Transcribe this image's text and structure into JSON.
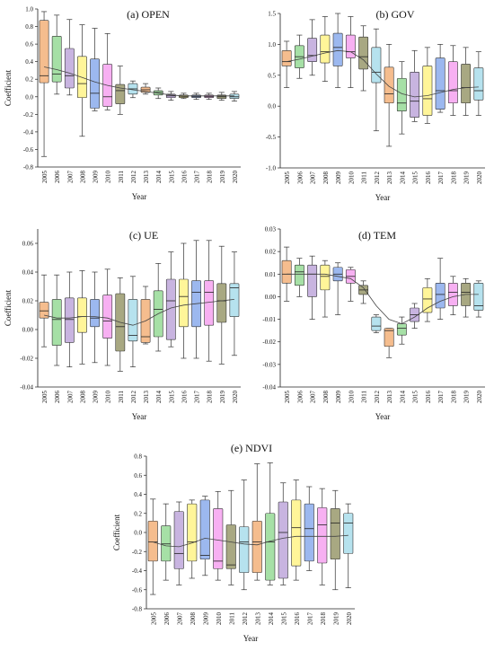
{
  "box_colors": [
    "#f5bd8e",
    "#a6e0a6",
    "#c8b4e0",
    "#fff599",
    "#9cb8ef",
    "#f7b0f2",
    "#a8a882",
    "#b6e2ee"
  ],
  "chart_data": [
    {
      "type": "box",
      "title": "(a) OPEN",
      "xlabel": "Year",
      "ylabel": "Coefficient",
      "ylim": [
        -0.8,
        1.0
      ],
      "yticks": [
        "-0.8",
        "-0.6",
        "-0.4",
        "-0.2",
        "0.0",
        "0.2",
        "0.4",
        "0.6",
        "0.8",
        "1.0"
      ],
      "ytick_values": [
        -0.8,
        -0.6,
        -0.4,
        -0.2,
        0.0,
        0.2,
        0.4,
        0.6,
        0.8,
        1.0
      ],
      "categories": [
        "2005",
        "2006",
        "2007",
        "2008",
        "2009",
        "2010",
        "2011",
        "2012",
        "2013",
        "2014",
        "2015",
        "2016",
        "2017",
        "2018",
        "2019",
        "2020"
      ],
      "boxes": [
        {
          "min": -0.68,
          "q1": 0.16,
          "median": 0.24,
          "q3": 0.87,
          "max": 0.97
        },
        {
          "min": 0.03,
          "q1": 0.17,
          "median": 0.26,
          "q3": 0.69,
          "max": 0.93
        },
        {
          "min": 0.02,
          "q1": 0.1,
          "median": 0.24,
          "q3": 0.55,
          "max": 0.88
        },
        {
          "min": -0.45,
          "q1": -0.01,
          "median": 0.15,
          "q3": 0.46,
          "max": 0.82
        },
        {
          "min": -0.16,
          "q1": -0.13,
          "median": 0.04,
          "q3": 0.43,
          "max": 0.78
        },
        {
          "min": -0.15,
          "q1": -0.11,
          "median": 0.0,
          "q3": 0.37,
          "max": 0.72
        },
        {
          "min": -0.2,
          "q1": -0.08,
          "median": 0.07,
          "q3": 0.14,
          "max": 0.35
        },
        {
          "min": -0.01,
          "q1": 0.03,
          "median": 0.09,
          "q3": 0.15,
          "max": 0.18
        },
        {
          "min": 0.03,
          "q1": 0.05,
          "median": 0.08,
          "q3": 0.11,
          "max": 0.15
        },
        {
          "min": -0.02,
          "q1": 0.02,
          "median": 0.05,
          "q3": 0.07,
          "max": 0.1
        },
        {
          "min": -0.04,
          "q1": -0.01,
          "median": 0.01,
          "q3": 0.03,
          "max": 0.06
        },
        {
          "min": -0.02,
          "q1": -0.01,
          "median": 0.0,
          "q3": 0.02,
          "max": 0.04
        },
        {
          "min": -0.03,
          "q1": -0.01,
          "median": 0.0,
          "q3": 0.02,
          "max": 0.04
        },
        {
          "min": -0.03,
          "q1": -0.01,
          "median": 0.0,
          "q3": 0.02,
          "max": 0.04
        },
        {
          "min": -0.04,
          "q1": -0.02,
          "median": 0.0,
          "q3": 0.02,
          "max": 0.05
        },
        {
          "min": -0.05,
          "q1": -0.02,
          "median": 0.0,
          "q3": 0.03,
          "max": 0.06
        }
      ],
      "trend": [
        0.34,
        0.31,
        0.27,
        0.22,
        0.17,
        0.13,
        0.1,
        0.08,
        0.06,
        0.04,
        0.02,
        0.01,
        0.01,
        0.01,
        0.01,
        0.01
      ]
    },
    {
      "type": "box",
      "title": "(b) GOV",
      "xlabel": "Year",
      "ylabel": "",
      "ylim": [
        -1.0,
        1.5
      ],
      "yticks": [
        "-1.0",
        "-0.5",
        "0.0",
        "0.5",
        "1.0",
        "1.5"
      ],
      "ytick_values": [
        -1.0,
        -0.5,
        0.0,
        0.5,
        1.0,
        1.5
      ],
      "categories": [
        "2005",
        "2006",
        "2007",
        "2008",
        "2009",
        "2010",
        "2011",
        "2012",
        "2013",
        "2014",
        "2015",
        "2016",
        "2017",
        "2018",
        "2019",
        "2020"
      ],
      "boxes": [
        {
          "min": 0.3,
          "q1": 0.65,
          "median": 0.72,
          "q3": 0.9,
          "max": 1.05
        },
        {
          "min": 0.45,
          "q1": 0.62,
          "median": 0.8,
          "q3": 0.98,
          "max": 1.15
        },
        {
          "min": 0.5,
          "q1": 0.72,
          "median": 0.82,
          "q3": 1.1,
          "max": 1.4
        },
        {
          "min": 0.4,
          "q1": 0.7,
          "median": 0.88,
          "q3": 1.15,
          "max": 1.45
        },
        {
          "min": 0.3,
          "q1": 0.65,
          "median": 0.95,
          "q3": 1.18,
          "max": 1.5
        },
        {
          "min": 0.3,
          "q1": 0.78,
          "median": 0.88,
          "q3": 1.15,
          "max": 1.45
        },
        {
          "min": 0.25,
          "q1": 0.6,
          "median": 0.8,
          "q3": 1.12,
          "max": 1.3
        },
        {
          "min": -0.4,
          "q1": 0.38,
          "median": 0.55,
          "q3": 0.95,
          "max": 1.25
        },
        {
          "min": -0.65,
          "q1": 0.05,
          "median": 0.2,
          "q3": 0.63,
          "max": 1.0
        },
        {
          "min": -0.45,
          "q1": -0.08,
          "median": 0.05,
          "q3": 0.45,
          "max": 0.72
        },
        {
          "min": -0.25,
          "q1": -0.18,
          "median": 0.08,
          "q3": 0.55,
          "max": 0.9
        },
        {
          "min": -0.28,
          "q1": -0.15,
          "median": 0.12,
          "q3": 0.65,
          "max": 0.95
        },
        {
          "min": -0.1,
          "q1": -0.05,
          "median": 0.25,
          "q3": 0.78,
          "max": 1.0
        },
        {
          "min": -0.15,
          "q1": 0.05,
          "median": 0.25,
          "q3": 0.72,
          "max": 0.98
        },
        {
          "min": -0.15,
          "q1": 0.05,
          "median": 0.3,
          "q3": 0.68,
          "max": 0.95
        },
        {
          "min": -0.15,
          "q1": 0.1,
          "median": 0.25,
          "q3": 0.62,
          "max": 0.88
        }
      ],
      "trend": [
        0.72,
        0.76,
        0.81,
        0.86,
        0.9,
        0.88,
        0.75,
        0.52,
        0.32,
        0.2,
        0.15,
        0.17,
        0.22,
        0.27,
        0.3,
        0.31
      ]
    },
    {
      "type": "box",
      "title": "(c) UE",
      "xlabel": "Year",
      "ylabel": "Coefficient",
      "ylim": [
        -0.04,
        0.07
      ],
      "yticks": [
        "-0.04",
        "-0.02",
        "0.00",
        "0.02",
        "0.04",
        "0.06"
      ],
      "ytick_values": [
        -0.04,
        -0.02,
        0.0,
        0.02,
        0.04,
        0.06
      ],
      "categories": [
        "2005",
        "2006",
        "2007",
        "2008",
        "2009",
        "2010",
        "2011",
        "2012",
        "2013",
        "2014",
        "2015",
        "2016",
        "2017",
        "2018",
        "2019",
        "2020"
      ],
      "boxes": [
        {
          "min": -0.012,
          "q1": 0.008,
          "median": 0.013,
          "q3": 0.019,
          "max": 0.038
        },
        {
          "min": -0.025,
          "q1": -0.011,
          "median": 0.007,
          "q3": 0.021,
          "max": 0.038
        },
        {
          "min": -0.026,
          "q1": -0.009,
          "median": 0.007,
          "q3": 0.022,
          "max": 0.04
        },
        {
          "min": -0.024,
          "q1": -0.002,
          "median": 0.009,
          "q3": 0.022,
          "max": 0.041
        },
        {
          "min": -0.023,
          "q1": 0.002,
          "median": 0.008,
          "q3": 0.021,
          "max": 0.04
        },
        {
          "min": -0.025,
          "q1": -0.006,
          "median": 0.006,
          "q3": 0.024,
          "max": 0.042
        },
        {
          "min": -0.029,
          "q1": -0.015,
          "median": 0.002,
          "q3": 0.025,
          "max": 0.036
        },
        {
          "min": -0.026,
          "q1": -0.008,
          "median": -0.004,
          "q3": 0.021,
          "max": 0.037
        },
        {
          "min": -0.01,
          "q1": -0.009,
          "median": -0.005,
          "q3": 0.021,
          "max": 0.03
        },
        {
          "min": -0.015,
          "q1": -0.005,
          "median": 0.014,
          "q3": 0.027,
          "max": 0.046
        },
        {
          "min": -0.012,
          "q1": -0.007,
          "median": 0.02,
          "q3": 0.035,
          "max": 0.054
        },
        {
          "min": -0.02,
          "q1": 0.002,
          "median": 0.023,
          "q3": 0.035,
          "max": 0.06
        },
        {
          "min": -0.02,
          "q1": 0.002,
          "median": 0.026,
          "q3": 0.034,
          "max": 0.062
        },
        {
          "min": -0.022,
          "q1": 0.003,
          "median": 0.026,
          "q3": 0.034,
          "max": 0.062
        },
        {
          "min": -0.024,
          "q1": 0.005,
          "median": 0.02,
          "q3": 0.032,
          "max": 0.058
        },
        {
          "min": -0.018,
          "q1": 0.009,
          "median": 0.029,
          "q3": 0.032,
          "max": 0.054
        }
      ],
      "trend": [
        0.01,
        0.008,
        0.008,
        0.009,
        0.009,
        0.008,
        0.005,
        0.003,
        0.006,
        0.011,
        0.015,
        0.017,
        0.018,
        0.019,
        0.02,
        0.021
      ]
    },
    {
      "type": "box",
      "title": "(d) TEM",
      "xlabel": "Year",
      "ylabel": "",
      "ylim": [
        -0.04,
        0.03
      ],
      "yticks": [
        "-0.04",
        "-0.03",
        "-0.02",
        "-0.01",
        "0.00",
        "0.01",
        "0.02",
        "0.03"
      ],
      "ytick_values": [
        -0.04,
        -0.03,
        -0.02,
        -0.01,
        0.0,
        0.01,
        0.02,
        0.03
      ],
      "categories": [
        "2005",
        "2006",
        "2007",
        "2008",
        "2009",
        "2010",
        "2011",
        "2012",
        "2013",
        "2014",
        "2015",
        "2016",
        "2017",
        "2018",
        "2019",
        "2020"
      ],
      "boxes": [
        {
          "min": -0.002,
          "q1": 0.006,
          "median": 0.01,
          "q3": 0.016,
          "max": 0.022
        },
        {
          "min": 0.0,
          "q1": 0.005,
          "median": 0.011,
          "q3": 0.014,
          "max": 0.017
        },
        {
          "min": -0.01,
          "q1": 0.0,
          "median": 0.01,
          "q3": 0.014,
          "max": 0.018
        },
        {
          "min": -0.009,
          "q1": 0.003,
          "median": 0.009,
          "q3": 0.014,
          "max": 0.016
        },
        {
          "min": -0.008,
          "q1": 0.007,
          "median": 0.01,
          "q3": 0.013,
          "max": 0.015
        },
        {
          "min": -0.002,
          "q1": 0.006,
          "median": 0.009,
          "q3": 0.012,
          "max": 0.013
        },
        {
          "min": -0.003,
          "q1": 0.001,
          "median": 0.003,
          "q3": 0.005,
          "max": 0.007
        },
        {
          "min": -0.016,
          "q1": -0.015,
          "median": -0.013,
          "q3": -0.009,
          "max": -0.008
        },
        {
          "min": -0.027,
          "q1": -0.022,
          "median": -0.015,
          "q3": -0.014,
          "max": -0.014
        },
        {
          "min": -0.021,
          "q1": -0.017,
          "median": -0.014,
          "q3": -0.012,
          "max": -0.009
        },
        {
          "min": -0.014,
          "q1": -0.011,
          "median": -0.008,
          "q3": -0.005,
          "max": -0.003
        },
        {
          "min": -0.011,
          "q1": -0.007,
          "median": -0.001,
          "q3": 0.004,
          "max": 0.008
        },
        {
          "min": -0.01,
          "q1": -0.005,
          "median": 0.001,
          "q3": 0.006,
          "max": 0.017
        },
        {
          "min": -0.008,
          "q1": -0.004,
          "median": 0.002,
          "q3": 0.006,
          "max": 0.009
        },
        {
          "min": -0.009,
          "q1": -0.004,
          "median": 0.002,
          "q3": 0.006,
          "max": 0.008
        },
        {
          "min": -0.009,
          "q1": -0.006,
          "median": -0.004,
          "q3": 0.006,
          "max": 0.007
        }
      ],
      "trend": [
        0.01,
        0.01,
        0.01,
        0.01,
        0.009,
        0.008,
        0.004,
        -0.004,
        -0.01,
        -0.012,
        -0.009,
        -0.005,
        -0.002,
        0.0,
        0.001,
        0.001
      ]
    },
    {
      "type": "box",
      "title": "(e) NDVI",
      "xlabel": "Year",
      "ylabel": "Coefficient",
      "ylim": [
        -0.8,
        0.8
      ],
      "yticks": [
        "-0.8",
        "-0.6",
        "-0.4",
        "-0.2",
        "0.0",
        "0.2",
        "0.4",
        "0.6",
        "0.8"
      ],
      "ytick_values": [
        -0.8,
        -0.6,
        -0.4,
        -0.2,
        0.0,
        0.2,
        0.4,
        0.6,
        0.8
      ],
      "categories": [
        "2005",
        "2006",
        "2007",
        "2008",
        "2009",
        "2010",
        "2011",
        "2012",
        "2013",
        "2014",
        "2015",
        "2016",
        "2017",
        "2018",
        "2019",
        "2020"
      ],
      "boxes": [
        {
          "min": -0.65,
          "q1": -0.3,
          "median": -0.1,
          "q3": 0.12,
          "max": 0.35
        },
        {
          "min": -0.5,
          "q1": -0.3,
          "median": -0.12,
          "q3": 0.07,
          "max": 0.3
        },
        {
          "min": -0.55,
          "q1": -0.38,
          "median": -0.22,
          "q3": 0.22,
          "max": 0.32
        },
        {
          "min": -0.48,
          "q1": -0.3,
          "median": -0.1,
          "q3": 0.3,
          "max": 0.34
        },
        {
          "min": -0.45,
          "q1": -0.28,
          "median": -0.24,
          "q3": 0.34,
          "max": 0.38
        },
        {
          "min": -0.5,
          "q1": -0.38,
          "median": -0.3,
          "q3": 0.25,
          "max": 0.43
        },
        {
          "min": -0.55,
          "q1": -0.38,
          "median": -0.34,
          "q3": 0.08,
          "max": 0.44
        },
        {
          "min": -0.6,
          "q1": -0.42,
          "median": -0.1,
          "q3": 0.06,
          "max": 0.55
        },
        {
          "min": -0.5,
          "q1": -0.42,
          "median": -0.1,
          "q3": 0.12,
          "max": 0.72
        },
        {
          "min": -0.55,
          "q1": -0.5,
          "median": -0.1,
          "q3": 0.2,
          "max": 0.73
        },
        {
          "min": -0.55,
          "q1": -0.48,
          "median": 0.0,
          "q3": 0.32,
          "max": 0.52
        },
        {
          "min": -0.5,
          "q1": -0.35,
          "median": 0.05,
          "q3": 0.34,
          "max": 0.55
        },
        {
          "min": -0.4,
          "q1": -0.3,
          "median": 0.04,
          "q3": 0.3,
          "max": 0.48
        },
        {
          "min": -0.55,
          "q1": -0.32,
          "median": 0.08,
          "q3": 0.26,
          "max": 0.46
        },
        {
          "min": -0.6,
          "q1": -0.28,
          "median": 0.1,
          "q3": 0.25,
          "max": 0.44
        },
        {
          "min": -0.58,
          "q1": -0.22,
          "median": 0.1,
          "q3": 0.2,
          "max": 0.3
        }
      ],
      "trend": [
        -0.1,
        -0.14,
        -0.15,
        -0.11,
        -0.06,
        -0.08,
        -0.1,
        -0.12,
        -0.13,
        -0.09,
        -0.06,
        -0.04,
        -0.04,
        -0.04,
        -0.04,
        -0.03
      ]
    }
  ]
}
